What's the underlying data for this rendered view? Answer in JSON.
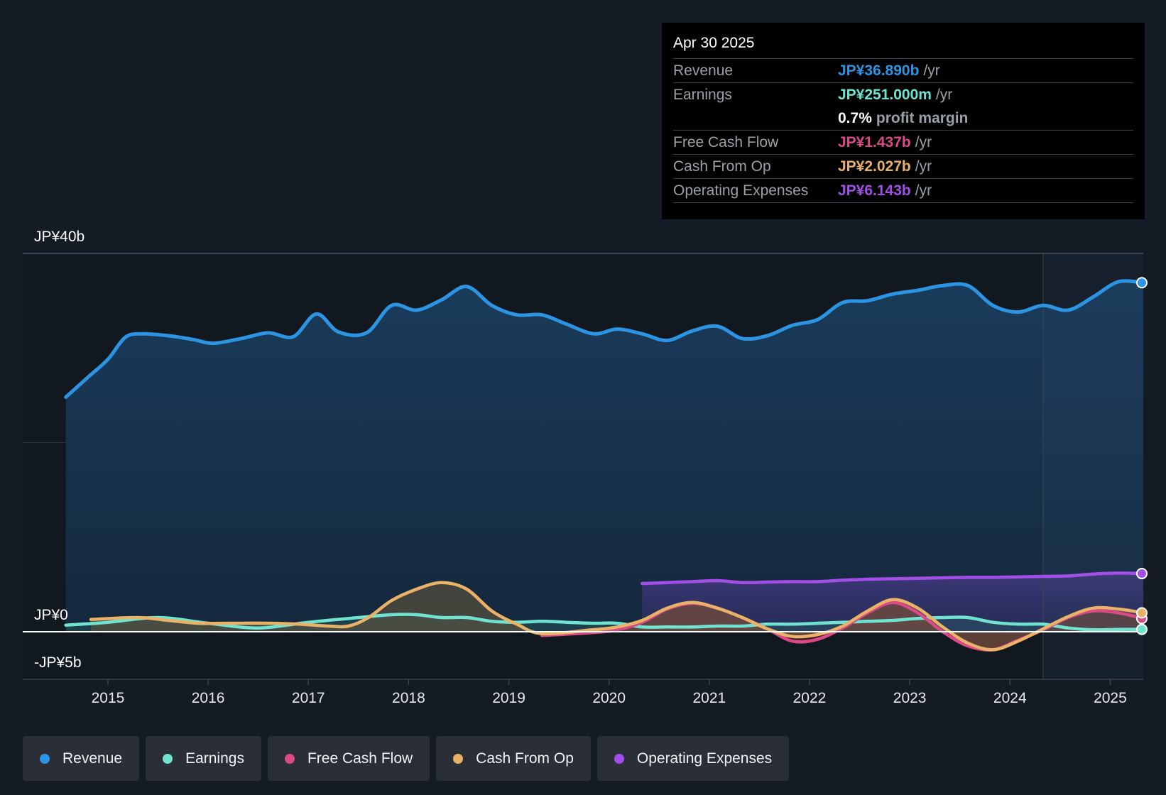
{
  "tooltip": {
    "date": "Apr 30 2025",
    "rows": [
      {
        "label": "Revenue",
        "value": "JP¥36.890b",
        "unit": "/yr",
        "color": "#2b94e3"
      },
      {
        "label": "Earnings",
        "value": "JP¥251.000m",
        "unit": "/yr",
        "color": "#6fe3d0"
      },
      {
        "label": "",
        "value": "0.7%",
        "unit": "profit margin",
        "color": "#ffffff"
      },
      {
        "label": "Free Cash Flow",
        "value": "JP¥1.437b",
        "unit": "/yr",
        "color": "#d94a86"
      },
      {
        "label": "Cash From Op",
        "value": "JP¥2.027b",
        "unit": "/yr",
        "color": "#eab266"
      },
      {
        "label": "Operating Expenses",
        "value": "JP¥6.143b",
        "unit": "/yr",
        "color": "#a34ee8"
      }
    ]
  },
  "legend": [
    {
      "label": "Revenue",
      "color": "#2b94e3"
    },
    {
      "label": "Earnings",
      "color": "#6fe3d0"
    },
    {
      "label": "Free Cash Flow",
      "color": "#d94a86"
    },
    {
      "label": "Cash From Op",
      "color": "#eab266"
    },
    {
      "label": "Operating Expenses",
      "color": "#a34ee8"
    }
  ],
  "chart_data": {
    "type": "area",
    "title": "",
    "xlabel": "",
    "ylabel": "",
    "ylim": [
      -5,
      40
    ],
    "y_tick_labels": [
      "JP¥40b",
      "JP¥0",
      "-JP¥5b"
    ],
    "y_tick_values": [
      40,
      0,
      -5
    ],
    "x_tick_labels": [
      "2015",
      "2016",
      "2017",
      "2018",
      "2019",
      "2020",
      "2021",
      "2022",
      "2023",
      "2024",
      "2025"
    ],
    "x_tick_values": [
      2015,
      2016,
      2017,
      2018,
      2019,
      2020,
      2021,
      2022,
      2023,
      2024,
      2025
    ],
    "xlim": [
      2014.15,
      2025.33
    ],
    "forecast_start": 2024.33,
    "series": [
      {
        "name": "Revenue",
        "color": "#2b94e3",
        "x": [
          2014.58,
          2014.8,
          2015.0,
          2015.17,
          2015.33,
          2015.6,
          2015.85,
          2016.05,
          2016.33,
          2016.6,
          2016.85,
          2017.08,
          2017.3,
          2017.58,
          2017.83,
          2018.08,
          2018.33,
          2018.58,
          2018.83,
          2019.08,
          2019.33,
          2019.58,
          2019.85,
          2020.08,
          2020.33,
          2020.58,
          2020.83,
          2021.08,
          2021.33,
          2021.58,
          2021.83,
          2022.08,
          2022.33,
          2022.58,
          2022.83,
          2023.08,
          2023.33,
          2023.58,
          2023.83,
          2024.08,
          2024.33,
          2024.58,
          2024.83,
          2025.08,
          2025.33
        ],
        "values": [
          24.8,
          26.9,
          28.8,
          31.1,
          31.5,
          31.3,
          30.9,
          30.5,
          31.0,
          31.6,
          31.2,
          33.6,
          31.7,
          31.6,
          34.5,
          34.0,
          35.1,
          36.5,
          34.5,
          33.5,
          33.5,
          32.5,
          31.5,
          32.0,
          31.5,
          30.8,
          31.8,
          32.3,
          31.0,
          31.3,
          32.4,
          33.0,
          34.8,
          35.0,
          35.7,
          36.1,
          36.6,
          36.6,
          34.5,
          33.8,
          34.5,
          34.0,
          35.4,
          37.0,
          36.9
        ]
      },
      {
        "name": "Earnings",
        "color": "#6fe3d0",
        "x": [
          2014.58,
          2015.0,
          2015.5,
          2016.0,
          2016.5,
          2017.0,
          2017.5,
          2017.83,
          2018.08,
          2018.33,
          2018.58,
          2018.83,
          2019.08,
          2019.33,
          2019.58,
          2019.83,
          2020.08,
          2020.33,
          2020.58,
          2020.83,
          2021.08,
          2021.33,
          2021.58,
          2021.83,
          2022.08,
          2022.33,
          2022.58,
          2022.83,
          2023.08,
          2023.33,
          2023.58,
          2023.83,
          2024.08,
          2024.33,
          2024.58,
          2024.83,
          2025.08,
          2025.33
        ],
        "values": [
          0.7,
          1.0,
          1.5,
          0.9,
          0.4,
          1.0,
          1.5,
          1.8,
          1.8,
          1.5,
          1.5,
          1.1,
          1.0,
          1.1,
          1.0,
          0.9,
          0.9,
          0.5,
          0.5,
          0.5,
          0.6,
          0.6,
          0.8,
          0.8,
          0.9,
          1.0,
          1.1,
          1.2,
          1.4,
          1.5,
          1.5,
          1.0,
          0.8,
          0.8,
          0.4,
          0.2,
          0.25,
          0.25
        ]
      },
      {
        "name": "Free Cash Flow",
        "color": "#d94a86",
        "x": [
          2019.33,
          2019.83,
          2020.08,
          2020.33,
          2020.58,
          2020.83,
          2021.08,
          2021.33,
          2021.58,
          2021.83,
          2022.08,
          2022.33,
          2022.58,
          2022.83,
          2023.08,
          2023.33,
          2023.58,
          2023.83,
          2024.08,
          2024.33,
          2024.58,
          2024.83,
          2025.08,
          2025.33
        ],
        "values": [
          -0.4,
          -0.1,
          0.2,
          1.0,
          2.4,
          3.0,
          2.5,
          1.5,
          0.3,
          -1.0,
          -0.8,
          0.4,
          2.0,
          3.1,
          2.0,
          0.0,
          -1.5,
          -1.9,
          -0.9,
          0.2,
          1.5,
          2.2,
          2.0,
          1.4
        ]
      },
      {
        "name": "Cash From Op",
        "color": "#eab266",
        "x": [
          2014.83,
          2015.3,
          2015.6,
          2015.9,
          2016.2,
          2016.6,
          2016.9,
          2017.2,
          2017.4,
          2017.6,
          2017.83,
          2018.08,
          2018.33,
          2018.58,
          2018.83,
          2019.08,
          2019.33,
          2019.83,
          2020.08,
          2020.33,
          2020.58,
          2020.83,
          2021.08,
          2021.33,
          2021.58,
          2021.83,
          2022.08,
          2022.33,
          2022.58,
          2022.83,
          2023.08,
          2023.33,
          2023.58,
          2023.83,
          2024.08,
          2024.33,
          2024.58,
          2024.83,
          2025.08,
          2025.33
        ],
        "values": [
          1.3,
          1.5,
          1.2,
          0.9,
          0.9,
          0.9,
          0.8,
          0.6,
          0.6,
          1.5,
          3.3,
          4.5,
          5.2,
          4.5,
          2.2,
          0.8,
          -0.2,
          0.2,
          0.5,
          1.2,
          2.5,
          3.1,
          2.5,
          1.5,
          0.3,
          -0.5,
          -0.3,
          0.6,
          2.2,
          3.4,
          2.5,
          0.5,
          -1.2,
          -1.9,
          -1.0,
          0.3,
          1.6,
          2.5,
          2.4,
          2.0
        ]
      },
      {
        "name": "Operating Expenses",
        "color": "#a34ee8",
        "x": [
          2020.33,
          2020.58,
          2020.83,
          2021.08,
          2021.33,
          2021.58,
          2021.83,
          2022.08,
          2022.33,
          2022.58,
          2022.83,
          2023.08,
          2023.33,
          2023.58,
          2023.83,
          2024.08,
          2024.33,
          2024.58,
          2024.83,
          2025.08,
          2025.33
        ],
        "values": [
          5.1,
          5.2,
          5.3,
          5.4,
          5.2,
          5.25,
          5.3,
          5.3,
          5.45,
          5.55,
          5.6,
          5.65,
          5.7,
          5.75,
          5.75,
          5.8,
          5.85,
          5.9,
          6.1,
          6.2,
          6.15
        ]
      }
    ]
  }
}
